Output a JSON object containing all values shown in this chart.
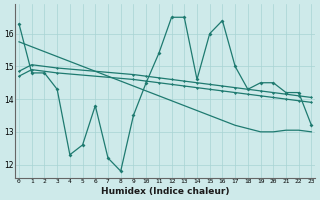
{
  "xlabel": "Humidex (Indice chaleur)",
  "background_color": "#ceeaea",
  "grid_color": "#a8d4d4",
  "line_color": "#1e7a70",
  "x_ticks": [
    0,
    1,
    2,
    3,
    4,
    5,
    6,
    7,
    8,
    9,
    10,
    11,
    12,
    13,
    14,
    15,
    16,
    17,
    18,
    19,
    20,
    21,
    22,
    23
  ],
  "y_ticks": [
    12,
    13,
    14,
    15,
    16
  ],
  "ylim": [
    11.6,
    16.9
  ],
  "xlim": [
    -0.3,
    23.3
  ],
  "series1_x": [
    0,
    1,
    2,
    3,
    4,
    5,
    6,
    7,
    8,
    9,
    10,
    11,
    12,
    13,
    14,
    15,
    16,
    17,
    18,
    19,
    20,
    21,
    22,
    23
  ],
  "series1_y": [
    16.3,
    14.8,
    14.8,
    14.3,
    12.3,
    12.6,
    13.8,
    12.2,
    11.8,
    13.5,
    14.5,
    15.4,
    16.5,
    16.5,
    14.6,
    16.0,
    16.4,
    15.0,
    14.3,
    14.5,
    14.5,
    14.2,
    14.2,
    13.2
  ],
  "series2_x": [
    0,
    1,
    3,
    9,
    10,
    11,
    12,
    13,
    14,
    15,
    16,
    17,
    18,
    19,
    20,
    21,
    22,
    23
  ],
  "series2_y": [
    14.85,
    15.05,
    14.95,
    14.75,
    14.7,
    14.65,
    14.6,
    14.55,
    14.5,
    14.45,
    14.4,
    14.35,
    14.3,
    14.25,
    14.2,
    14.15,
    14.1,
    14.05
  ],
  "series3_x": [
    0,
    1,
    3,
    9,
    10,
    11,
    12,
    13,
    14,
    15,
    16,
    17,
    18,
    19,
    20,
    21,
    22,
    23
  ],
  "series3_y": [
    14.7,
    14.9,
    14.8,
    14.6,
    14.55,
    14.5,
    14.45,
    14.4,
    14.35,
    14.3,
    14.25,
    14.2,
    14.15,
    14.1,
    14.05,
    14.0,
    13.95,
    13.9
  ],
  "series4_x": [
    0,
    1,
    2,
    3,
    4,
    5,
    6,
    7,
    8,
    9,
    10,
    11,
    12,
    13,
    14,
    15,
    16,
    17,
    18,
    19,
    20,
    21,
    22,
    23
  ],
  "series4_y": [
    15.75,
    15.6,
    15.45,
    15.3,
    15.15,
    15.0,
    14.85,
    14.7,
    14.55,
    14.4,
    14.25,
    14.1,
    13.95,
    13.8,
    13.65,
    13.5,
    13.35,
    13.2,
    13.1,
    13.0,
    13.0,
    13.05,
    13.05,
    13.0
  ]
}
